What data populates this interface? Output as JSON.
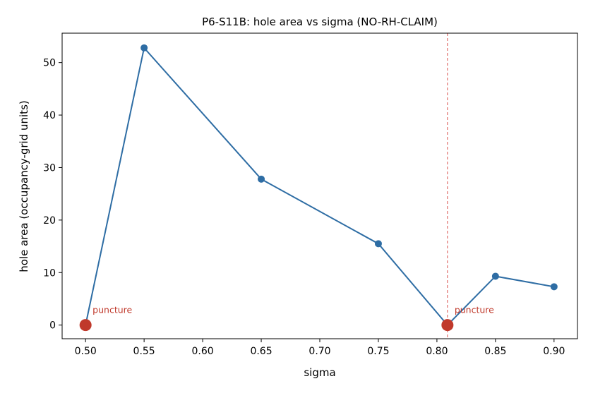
{
  "chart_data": {
    "type": "line",
    "title": "P6-S11B: hole area vs sigma (NO-RH-CLAIM)",
    "xlabel": "sigma",
    "ylabel": "hole area (occupancy-grid units)",
    "xlim": [
      0.48,
      0.92
    ],
    "ylim": [
      -2.6,
      55.6
    ],
    "xticks": [
      0.5,
      0.55,
      0.6,
      0.65,
      0.7,
      0.75,
      0.8,
      0.85,
      0.9
    ],
    "xtick_labels": [
      "0.50",
      "0.55",
      "0.60",
      "0.65",
      "0.70",
      "0.75",
      "0.80",
      "0.85",
      "0.90"
    ],
    "yticks": [
      0,
      10,
      20,
      30,
      40,
      50
    ],
    "ytick_labels": [
      "0",
      "10",
      "20",
      "30",
      "40",
      "50"
    ],
    "grid": false,
    "series": [
      {
        "x": [
          0.5,
          0.55,
          0.65,
          0.75,
          0.809,
          0.85,
          0.9
        ],
        "y": [
          0,
          52.8,
          27.8,
          15.5,
          0,
          9.3,
          7.3
        ],
        "color": "#2e6da4"
      }
    ],
    "punctures": [
      {
        "x": 0.5,
        "y": 0,
        "label": "puncture"
      },
      {
        "x": 0.809,
        "y": 0,
        "label": "puncture"
      }
    ],
    "vline": {
      "x": 0.809,
      "color": "#d9534f",
      "style": "dashed"
    },
    "puncture_color": "#c0392b"
  }
}
